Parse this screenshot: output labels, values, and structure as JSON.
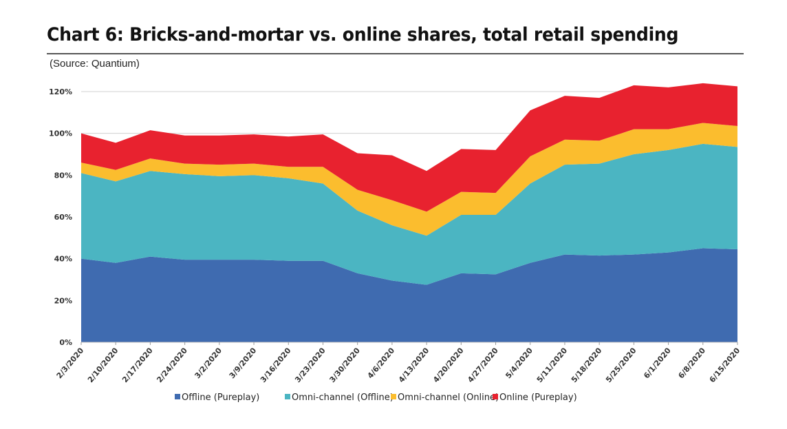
{
  "chart_data": {
    "type": "area",
    "stacked": true,
    "title": "Chart 6: Bricks-and-mortar vs. online shares, total retail spending",
    "subtitle": "(Source: Quantium)",
    "xlabel": "",
    "ylabel": "",
    "ylim": [
      0,
      120
    ],
    "yticks": [
      "0%",
      "20%",
      "40%",
      "60%",
      "80%",
      "100%",
      "120%"
    ],
    "grid": true,
    "legend_position": "bottom",
    "categories": [
      "2/3/2020",
      "2/10/2020",
      "2/17/2020",
      "2/24/2020",
      "3/2/2020",
      "3/9/2020",
      "3/16/2020",
      "3/23/2020",
      "3/30/2020",
      "4/6/2020",
      "4/13/2020",
      "4/20/2020",
      "4/27/2020",
      "5/4/2020",
      "5/11/2020",
      "5/18/2020",
      "5/25/2020",
      "6/1/2020",
      "6/8/2020",
      "6/15/2020"
    ],
    "series": [
      {
        "name": "Offline (Pureplay)",
        "color": "#3f6bb0",
        "values": [
          40,
          38,
          41,
          39.5,
          39.5,
          39.5,
          39,
          39,
          33,
          29.5,
          27.5,
          33,
          32.5,
          38,
          42,
          41.5,
          42,
          43,
          45,
          44.5
        ]
      },
      {
        "name": "Omni-channel (Offline)",
        "color": "#4bb5c2",
        "values": [
          41,
          39,
          41,
          41,
          40,
          40.5,
          39.5,
          37,
          30,
          26.5,
          23.5,
          28,
          28.5,
          38,
          43,
          44,
          48,
          49,
          50,
          49
        ]
      },
      {
        "name": "Omni-channel (Online)",
        "color": "#fbbd2e",
        "values": [
          5,
          5.5,
          6,
          5,
          5.5,
          5.5,
          5.5,
          8,
          10,
          12,
          11.5,
          11,
          10.5,
          13,
          12,
          11,
          12,
          10,
          10,
          10
        ]
      },
      {
        "name": "Online (Pureplay)",
        "color": "#e8222f",
        "values": [
          14,
          13,
          13.5,
          13.5,
          14,
          14,
          14.5,
          15.5,
          17.5,
          21.5,
          19.5,
          20.5,
          20.5,
          22,
          21,
          20.5,
          21,
          20,
          19,
          19
        ]
      }
    ]
  }
}
